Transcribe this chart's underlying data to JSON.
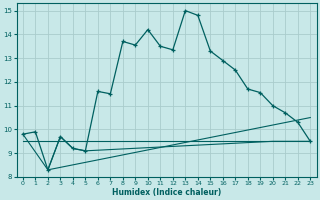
{
  "xlabel": "Humidex (Indice chaleur)",
  "xlim": [
    -0.5,
    23.5
  ],
  "ylim": [
    8,
    15.3
  ],
  "yticks": [
    8,
    9,
    10,
    11,
    12,
    13,
    14,
    15
  ],
  "xticks": [
    0,
    1,
    2,
    3,
    4,
    5,
    6,
    7,
    8,
    9,
    10,
    11,
    12,
    13,
    14,
    15,
    16,
    17,
    18,
    19,
    20,
    21,
    22,
    23
  ],
  "background_color": "#c8e8e8",
  "grid_color": "#aacccc",
  "line_color": "#006060",
  "line1_x": [
    0,
    1,
    2,
    3,
    4,
    5,
    6,
    7,
    8,
    9,
    10,
    11,
    12,
    13,
    14,
    15,
    16,
    17,
    18,
    19,
    20,
    21,
    22,
    23
  ],
  "line1_y": [
    9.8,
    9.9,
    8.3,
    9.7,
    9.2,
    9.1,
    11.6,
    11.5,
    13.7,
    13.55,
    14.2,
    13.5,
    13.35,
    15.0,
    14.8,
    13.3,
    12.9,
    12.5,
    11.7,
    11.55,
    11.0,
    10.7,
    10.3,
    9.5
  ],
  "line2_x": [
    0,
    2,
    3,
    4,
    5,
    20,
    23
  ],
  "line2_y": [
    9.8,
    8.3,
    9.7,
    9.2,
    9.1,
    9.5,
    9.5
  ],
  "line3_x": [
    2,
    23
  ],
  "line3_y": [
    8.3,
    10.5
  ],
  "line4_x": [
    0,
    19,
    23
  ],
  "line4_y": [
    9.5,
    9.5,
    9.5
  ]
}
